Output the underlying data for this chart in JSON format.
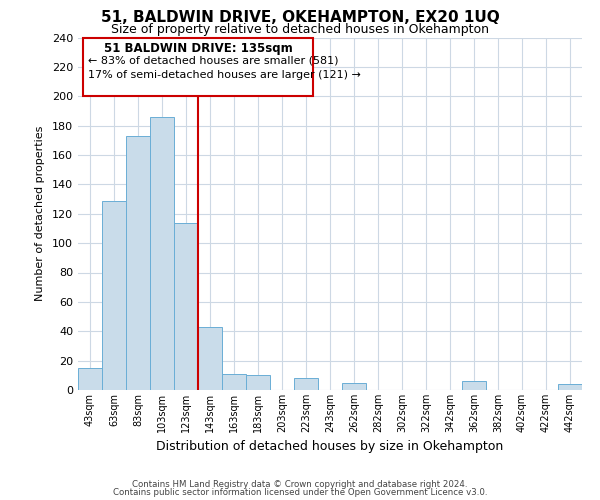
{
  "title": "51, BALDWIN DRIVE, OKEHAMPTON, EX20 1UQ",
  "subtitle": "Size of property relative to detached houses in Okehampton",
  "xlabel": "Distribution of detached houses by size in Okehampton",
  "ylabel": "Number of detached properties",
  "bar_labels": [
    "43sqm",
    "63sqm",
    "83sqm",
    "103sqm",
    "123sqm",
    "143sqm",
    "163sqm",
    "183sqm",
    "203sqm",
    "223sqm",
    "243sqm",
    "262sqm",
    "282sqm",
    "302sqm",
    "322sqm",
    "342sqm",
    "362sqm",
    "382sqm",
    "402sqm",
    "422sqm",
    "442sqm"
  ],
  "bar_values": [
    15,
    129,
    173,
    186,
    114,
    43,
    11,
    10,
    0,
    8,
    0,
    5,
    0,
    0,
    0,
    0,
    6,
    0,
    0,
    0,
    4
  ],
  "bar_color": "#c9dcea",
  "bar_edge_color": "#6aaed6",
  "vline_color": "#cc0000",
  "ylim": [
    0,
    240
  ],
  "yticks": [
    0,
    20,
    40,
    60,
    80,
    100,
    120,
    140,
    160,
    180,
    200,
    220,
    240
  ],
  "annotation_title": "51 BALDWIN DRIVE: 135sqm",
  "annotation_line1": "← 83% of detached houses are smaller (581)",
  "annotation_line2": "17% of semi-detached houses are larger (121) →",
  "annotation_box_edge": "#cc0000",
  "footer1": "Contains HM Land Registry data © Crown copyright and database right 2024.",
  "footer2": "Contains public sector information licensed under the Open Government Licence v3.0.",
  "bg_color": "#ffffff",
  "grid_color": "#cdd8e4"
}
